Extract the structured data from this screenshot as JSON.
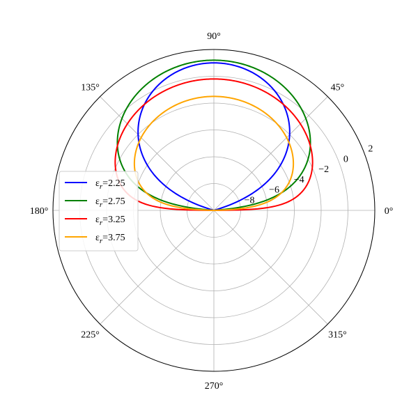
{
  "chart_data": {
    "type": "line",
    "projection": "polar",
    "title": "",
    "theta_unit": "degrees",
    "theta_range": [
      0,
      180
    ],
    "r_ticks": [
      -8,
      -6,
      -4,
      -2,
      0,
      2
    ],
    "r_tick_labels": [
      "−8",
      "−6",
      "−4",
      "−2",
      "0",
      "2"
    ],
    "r_range": [
      -10,
      2
    ],
    "r_label_angle_deg": 22.5,
    "theta_ticks_deg": [
      0,
      45,
      90,
      135,
      180,
      225,
      270,
      315
    ],
    "theta_tick_labels": [
      "0°",
      "45°",
      "90°",
      "135°",
      "180°",
      "225°",
      "270°",
      "315°"
    ],
    "grid": true,
    "legend": {
      "position": "center-left"
    },
    "series": [
      {
        "name": "εr=2.25",
        "legend_label": {
          "base": "ε",
          "sub": "r",
          "rest": "=2.25"
        },
        "color": "#0000ff",
        "peak_theta_deg": 90,
        "peak_r": 1.0,
        "theta_deg": [
          0,
          15,
          30,
          45,
          60,
          75,
          90,
          105,
          120,
          135,
          150,
          165,
          180
        ],
        "r": [
          -10.0,
          -9.0,
          -5.4,
          -2.3,
          -0.5,
          0.6,
          1.0,
          0.6,
          -0.5,
          -2.3,
          -5.4,
          -9.0,
          -10.0
        ]
      },
      {
        "name": "εr=2.75",
        "legend_label": {
          "base": "ε",
          "sub": "r",
          "rest": "=2.75"
        },
        "color": "#008000",
        "peak_theta_deg": 90,
        "peak_r": 1.2,
        "theta_deg": [
          0,
          15,
          30,
          45,
          60,
          75,
          90,
          105,
          120,
          135,
          150,
          165,
          180
        ],
        "r": [
          -10.0,
          -5.3,
          -1.5,
          -0.1,
          0.6,
          1.0,
          1.2,
          1.0,
          0.6,
          -0.1,
          -1.5,
          -5.3,
          -10.0
        ]
      },
      {
        "name": "εr=3.25",
        "legend_label": {
          "base": "ε",
          "sub": "r",
          "rest": "=3.25"
        },
        "color": "#ff0000",
        "peak_theta_deg": 90,
        "peak_r": -0.2,
        "theta_deg": [
          0,
          15,
          30,
          45,
          60,
          75,
          90,
          105,
          120,
          135,
          150,
          165,
          180
        ],
        "r": [
          -10.0,
          -4.8,
          -1.4,
          -0.6,
          -0.3,
          -0.2,
          -0.2,
          -0.2,
          -0.3,
          -0.6,
          -1.4,
          -4.8,
          -10.0
        ]
      },
      {
        "name": "εr=3.75",
        "legend_label": {
          "base": "ε",
          "sub": "r",
          "rest": "=3.75"
        },
        "color": "#ffa500",
        "peak_theta_deg": 90,
        "peak_r": -1.5,
        "theta_deg": [
          0,
          15,
          30,
          45,
          60,
          75,
          90,
          105,
          120,
          135,
          150,
          165,
          180
        ],
        "r": [
          -10.0,
          -5.2,
          -2.8,
          -2.1,
          -1.8,
          -1.6,
          -1.5,
          -1.6,
          -1.8,
          -2.1,
          -2.8,
          -5.2,
          -10.0
        ]
      }
    ]
  }
}
